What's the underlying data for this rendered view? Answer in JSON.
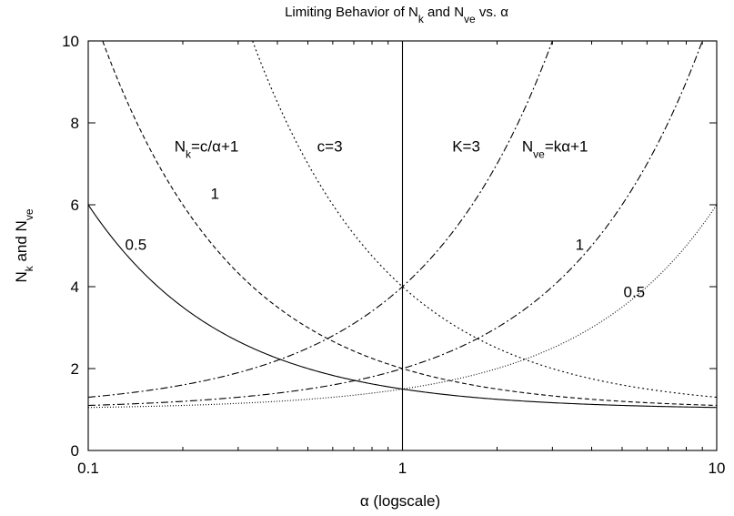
{
  "chart_data": {
    "type": "line",
    "title": {
      "pre": "Limiting Behavior of N",
      "sub1": "k",
      "mid": " and N",
      "sub2": "ve",
      "post": " vs. α"
    },
    "xlabel": "α (logscale)",
    "ylabel": {
      "pre": "N",
      "sub1": "k",
      "mid": " and N",
      "sub2": "ve"
    },
    "x_scale": "log",
    "xlim": [
      0.1,
      10
    ],
    "ylim": [
      0,
      10
    ],
    "grid": false,
    "x_ticks": [
      {
        "value": 0.1,
        "label": "0.1"
      },
      {
        "value": 1,
        "label": "1"
      },
      {
        "value": 10,
        "label": "10"
      }
    ],
    "y_ticks": [
      {
        "value": 0,
        "label": "0"
      },
      {
        "value": 2,
        "label": "2"
      },
      {
        "value": 4,
        "label": "4"
      },
      {
        "value": 6,
        "label": "6"
      },
      {
        "value": 8,
        "label": "8"
      },
      {
        "value": 10,
        "label": "10"
      }
    ],
    "vertical_line_x": 1,
    "series": [
      {
        "formula": "N_k = c/α + 1",
        "family": "Nk",
        "c": 0.5,
        "style": "solid",
        "points": [
          [
            0.1,
            6.0
          ],
          [
            0.2,
            3.5
          ],
          [
            0.5,
            2.0
          ],
          [
            1,
            1.5
          ],
          [
            2,
            1.25
          ],
          [
            5,
            1.1
          ],
          [
            10,
            1.05
          ]
        ]
      },
      {
        "formula": "N_k = c/α + 1",
        "family": "Nk",
        "c": 1,
        "style": "dashed",
        "points": [
          [
            0.111,
            10.0
          ],
          [
            0.2,
            6.0
          ],
          [
            0.5,
            3.0
          ],
          [
            1,
            2.0
          ],
          [
            2,
            1.5
          ],
          [
            5,
            1.2
          ],
          [
            10,
            1.1
          ]
        ]
      },
      {
        "formula": "N_k = c/α + 1",
        "family": "Nk",
        "c": 3,
        "style": "dotted",
        "points": [
          [
            0.333,
            10.0
          ],
          [
            0.5,
            7.0
          ],
          [
            1,
            4.0
          ],
          [
            2,
            2.5
          ],
          [
            5,
            1.6
          ],
          [
            10,
            1.3
          ]
        ]
      },
      {
        "formula": "N_ve = kα + 1",
        "family": "Nve",
        "k": 0.5,
        "style": "fine-dotted",
        "points": [
          [
            0.1,
            1.05
          ],
          [
            0.5,
            1.25
          ],
          [
            1,
            1.5
          ],
          [
            2,
            2.0
          ],
          [
            5,
            3.5
          ],
          [
            10,
            6.0
          ]
        ]
      },
      {
        "formula": "N_ve = kα + 1",
        "family": "Nve",
        "k": 1,
        "style": "dash-dot",
        "points": [
          [
            0.1,
            1.1
          ],
          [
            0.5,
            1.5
          ],
          [
            1,
            2.0
          ],
          [
            2,
            3.0
          ],
          [
            5,
            6.0
          ],
          [
            9,
            10.0
          ]
        ]
      },
      {
        "formula": "N_ve = kα + 1",
        "family": "Nve",
        "k": 3,
        "style": "dash-dot",
        "points": [
          [
            0.1,
            1.3
          ],
          [
            0.5,
            2.5
          ],
          [
            1,
            4.0
          ],
          [
            2,
            7.0
          ],
          [
            3,
            10.0
          ]
        ]
      }
    ],
    "annotations": [
      {
        "id": "nk-formula",
        "parts": [
          {
            "t": "N"
          },
          {
            "t": "k",
            "sub": true
          },
          {
            "t": "=c/α+1"
          }
        ],
        "x": 0.188,
        "y": 7.3
      },
      {
        "id": "nk-c1",
        "parts": [
          {
            "t": "1"
          }
        ],
        "x": 0.245,
        "y": 6.15
      },
      {
        "id": "nk-c05",
        "parts": [
          {
            "t": "0.5"
          }
        ],
        "x": 0.131,
        "y": 4.9
      },
      {
        "id": "nk-c3",
        "parts": [
          {
            "t": "c=3"
          }
        ],
        "x": 0.535,
        "y": 7.3
      },
      {
        "id": "nve-k3",
        "parts": [
          {
            "t": "K=3"
          }
        ],
        "x": 1.44,
        "y": 7.3
      },
      {
        "id": "nve-formula",
        "parts": [
          {
            "t": "N"
          },
          {
            "t": "ve",
            "sub": true
          },
          {
            "t": "=kα+1"
          }
        ],
        "x": 2.4,
        "y": 7.3
      },
      {
        "id": "nve-k1",
        "parts": [
          {
            "t": "1"
          }
        ],
        "x": 3.55,
        "y": 4.9
      },
      {
        "id": "nve-k05",
        "parts": [
          {
            "t": "0.5"
          }
        ],
        "x": 5.05,
        "y": 3.75
      }
    ]
  }
}
